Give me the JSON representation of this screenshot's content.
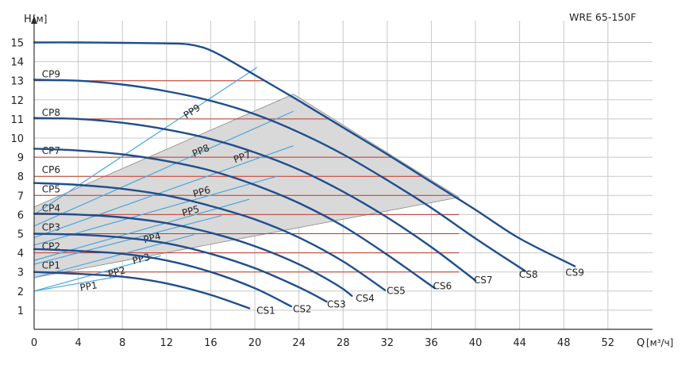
{
  "chart_data": {
    "type": "line",
    "title": "WRE 65-150F",
    "ylabel": "H",
    "ylabel_unit": "[м]",
    "xlabel": "Q",
    "xlabel_unit": "[м³/ч]",
    "xlim": [
      0,
      56
    ],
    "ylim": [
      0,
      16
    ],
    "x_ticks": [
      0,
      4,
      8,
      12,
      16,
      20,
      24,
      28,
      32,
      36,
      40,
      44,
      48,
      52
    ],
    "y_ticks": [
      1,
      2,
      3,
      4,
      5,
      6,
      7,
      8,
      9,
      10,
      11,
      12,
      13,
      14,
      15
    ],
    "grid": true,
    "colors": {
      "curve": "#1f4e8c",
      "line_light": "#4aa6dd",
      "constant": "#c0392b",
      "region": "#d9d9d9",
      "grid": "#c8c8c8"
    },
    "region_polygon": [
      [
        0,
        2.7
      ],
      [
        0,
        6.4
      ],
      [
        23.5,
        12.3
      ],
      [
        38.5,
        6.9
      ]
    ],
    "cs_curves": [
      {
        "name": "CS1",
        "points": [
          [
            0,
            3.0
          ],
          [
            4,
            2.9
          ],
          [
            8,
            2.75
          ],
          [
            12,
            2.4
          ],
          [
            16,
            1.8
          ],
          [
            19.5,
            1.1
          ]
        ],
        "label_at": [
          21,
          0.8
        ]
      },
      {
        "name": "CS2",
        "points": [
          [
            0,
            4.2
          ],
          [
            4,
            4.1
          ],
          [
            8,
            3.95
          ],
          [
            12,
            3.6
          ],
          [
            16,
            3.0
          ],
          [
            20,
            2.15
          ],
          [
            23.3,
            1.2
          ]
        ],
        "label_at": [
          24.3,
          0.9
        ]
      },
      {
        "name": "CS3",
        "points": [
          [
            0,
            5.0
          ],
          [
            4,
            4.95
          ],
          [
            8,
            4.8
          ],
          [
            12,
            4.5
          ],
          [
            16,
            3.95
          ],
          [
            20,
            3.2
          ],
          [
            24,
            2.2
          ],
          [
            26.5,
            1.45
          ]
        ],
        "label_at": [
          27.4,
          1.15
        ]
      },
      {
        "name": "CS4",
        "points": [
          [
            0,
            6.05
          ],
          [
            4,
            6.0
          ],
          [
            8,
            5.85
          ],
          [
            12,
            5.55
          ],
          [
            16,
            5.05
          ],
          [
            20,
            4.35
          ],
          [
            24,
            3.4
          ],
          [
            27.5,
            2.3
          ],
          [
            28.8,
            1.75
          ]
        ],
        "label_at": [
          30,
          1.45
        ]
      },
      {
        "name": "CS5",
        "points": [
          [
            0,
            7.65
          ],
          [
            4,
            7.55
          ],
          [
            8,
            7.35
          ],
          [
            12,
            7.0
          ],
          [
            16,
            6.45
          ],
          [
            20,
            5.75
          ],
          [
            24,
            4.8
          ],
          [
            28,
            3.55
          ],
          [
            31.8,
            2.05
          ]
        ],
        "label_at": [
          32.8,
          1.85
        ]
      },
      {
        "name": "CS6",
        "points": [
          [
            0,
            9.45
          ],
          [
            4,
            9.35
          ],
          [
            8,
            9.15
          ],
          [
            12,
            8.8
          ],
          [
            16,
            8.3
          ],
          [
            20,
            7.55
          ],
          [
            24,
            6.6
          ],
          [
            28,
            5.4
          ],
          [
            32,
            3.9
          ],
          [
            36.3,
            2.15
          ]
        ],
        "label_at": [
          37,
          2.1
        ]
      },
      {
        "name": "CS7",
        "points": [
          [
            0,
            11.05
          ],
          [
            4,
            11.0
          ],
          [
            8,
            10.8
          ],
          [
            12,
            10.45
          ],
          [
            16,
            9.95
          ],
          [
            20,
            9.25
          ],
          [
            24,
            8.35
          ],
          [
            28,
            7.2
          ],
          [
            32,
            5.85
          ],
          [
            36,
            4.3
          ],
          [
            40,
            2.55
          ]
        ],
        "label_at": [
          40.7,
          2.4
        ]
      },
      {
        "name": "CS8",
        "points": [
          [
            0,
            13.05
          ],
          [
            4,
            13.0
          ],
          [
            8,
            12.8
          ],
          [
            12,
            12.45
          ],
          [
            16,
            11.95
          ],
          [
            20,
            11.25
          ],
          [
            24,
            10.3
          ],
          [
            28,
            9.15
          ],
          [
            32,
            7.8
          ],
          [
            36,
            6.35
          ],
          [
            40,
            4.75
          ],
          [
            44.5,
            3.05
          ]
        ],
        "label_at": [
          44.8,
          2.7
        ]
      },
      {
        "name": "CS9",
        "points": [
          [
            0,
            15.0
          ],
          [
            4,
            15.0
          ],
          [
            8,
            14.98
          ],
          [
            12,
            14.95
          ],
          [
            14,
            14.9
          ],
          [
            15.5,
            14.7
          ],
          [
            17,
            14.3
          ],
          [
            20,
            13.3
          ],
          [
            24,
            11.95
          ],
          [
            28,
            10.55
          ],
          [
            32,
            9.15
          ],
          [
            36,
            7.7
          ],
          [
            40,
            6.25
          ],
          [
            44,
            4.75
          ],
          [
            49,
            3.3
          ]
        ],
        "label_at": [
          49,
          2.8
        ]
      }
    ],
    "cp_lines": [
      {
        "name": "CP1",
        "value": 3.0
      },
      {
        "name": "CP2",
        "value": 4.0
      },
      {
        "name": "CP3",
        "value": 5.0
      },
      {
        "name": "CP4",
        "value": 6.0
      },
      {
        "name": "CP5",
        "value": 7.0
      },
      {
        "name": "CP6",
        "value": 8.0
      },
      {
        "name": "CP7",
        "value": 9.0
      },
      {
        "name": "CP8",
        "value": 11.0
      },
      {
        "name": "CP9",
        "value": 13.0
      }
    ],
    "pp_lines": [
      {
        "name": "PP1",
        "start": [
          0,
          2.0
        ],
        "end": [
          8,
          2.8
        ],
        "label_at": [
          4.2,
          2.0
        ]
      },
      {
        "name": "PP2",
        "start": [
          0,
          2.0
        ],
        "end": [
          11.5,
          3.85
        ],
        "label_at": [
          6.8,
          2.7
        ]
      },
      {
        "name": "PP3",
        "start": [
          0,
          2.7
        ],
        "end": [
          14.5,
          4.95
        ],
        "label_at": [
          9.0,
          3.4
        ]
      },
      {
        "name": "PP4",
        "start": [
          0,
          3.4
        ],
        "end": [
          17,
          5.95
        ],
        "label_at": [
          10.0,
          4.5
        ]
      },
      {
        "name": "PP5",
        "start": [
          0,
          3.6
        ],
        "end": [
          19.5,
          6.8
        ],
        "label_at": [
          13.5,
          5.9
        ]
      },
      {
        "name": "PP6",
        "start": [
          0,
          4.4
        ],
        "end": [
          22,
          8.0
        ],
        "label_at": [
          14.5,
          6.9
        ]
      },
      {
        "name": "PP7",
        "start": [
          0,
          4.8
        ],
        "end": [
          23.5,
          9.6
        ],
        "label_at": [
          18.2,
          8.7
        ]
      },
      {
        "name": "PP8",
        "start": [
          0,
          5.4
        ],
        "end": [
          23.5,
          11.4
        ],
        "label_at": [
          14.5,
          9.0
        ]
      },
      {
        "name": "PP9",
        "start": [
          0,
          6.0
        ],
        "end": [
          20.2,
          13.7
        ],
        "label_at": [
          13.8,
          11.0
        ]
      }
    ]
  }
}
